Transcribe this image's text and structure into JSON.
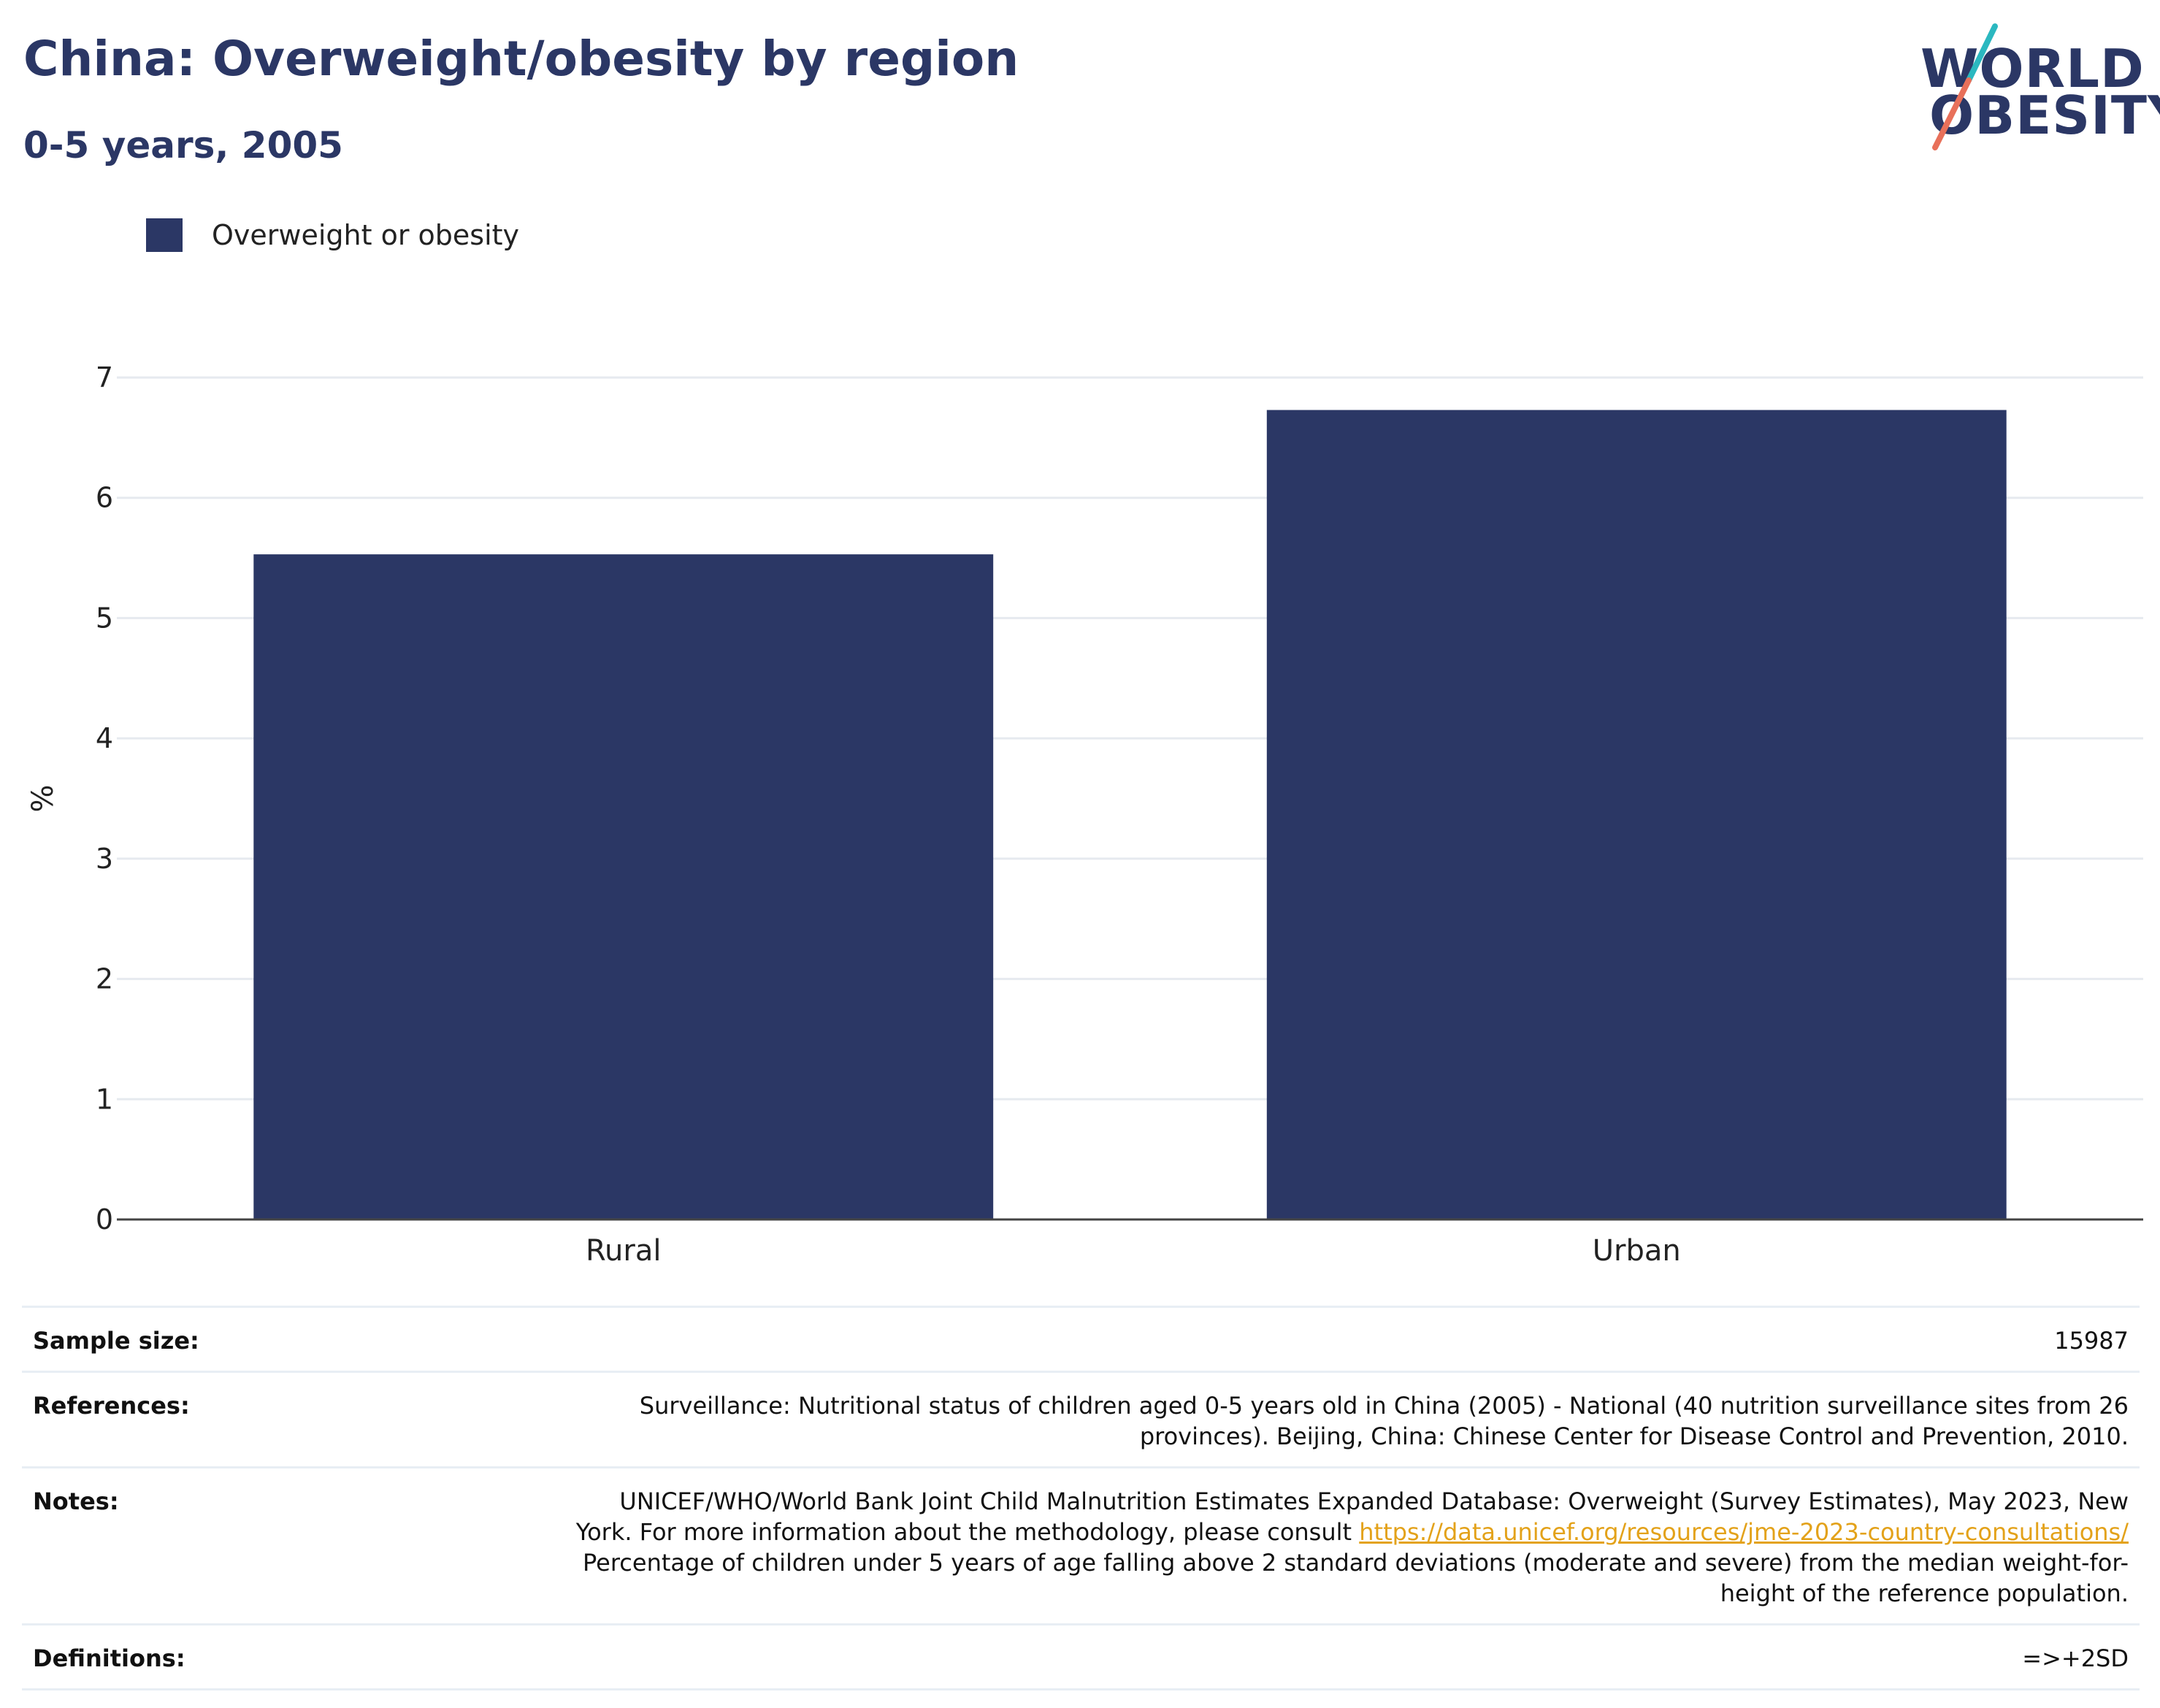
{
  "header": {
    "title": "China: Overweight/obesity by region",
    "subtitle": "0-5 years, 2005"
  },
  "logo": {
    "line1": "WORLD",
    "line2": "OBESITY",
    "colors": {
      "text": "#2b3765",
      "slash_top": "#2bb8c0",
      "slash_bottom": "#e8705a"
    }
  },
  "legend": {
    "label": "Overweight or obesity",
    "color": "#2b3765"
  },
  "chart_data": {
    "type": "bar",
    "categories": [
      "Rural",
      "Urban"
    ],
    "series": [
      {
        "name": "Overweight or obesity",
        "values": [
          5.53,
          6.73
        ],
        "color": "#2b3765"
      }
    ],
    "ylabel": "%",
    "xlabel": "",
    "ylim": [
      0,
      7
    ],
    "yticks": [
      0,
      1,
      2,
      3,
      4,
      5,
      6,
      7
    ],
    "grid": true,
    "legend_position": "top-left"
  },
  "info": {
    "sample_size_label": "Sample size:",
    "sample_size_value": "15987",
    "references_label": "References:",
    "references_line1": "Surveillance: Nutritional status of children aged 0-5 years old in China (2005) - National (40 nutrition surveillance sites from 26",
    "references_line2": "provinces). Beijing, China: Chinese Center for Disease Control and Prevention, 2010.",
    "notes_label": "Notes:",
    "notes_line1": "UNICEF/WHO/World Bank Joint Child Malnutrition Estimates Expanded Database: Overweight (Survey Estimates), May 2023, New",
    "notes_line2_prefix": "York. For more information about the methodology, please consult ",
    "notes_link": "https://data.unicef.org/resources/jme-2023-country-consultations/",
    "notes_line3": "Percentage of children under 5 years of age falling above 2 standard deviations (moderate and severe) from the median weight-for-",
    "notes_line4": "height of the reference population.",
    "definitions_label": "Definitions:",
    "definitions_value": "=>+2SD"
  }
}
